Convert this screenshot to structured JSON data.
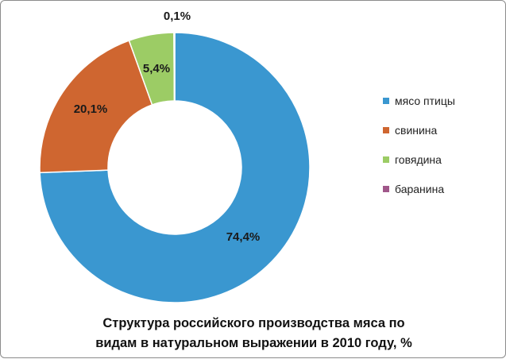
{
  "chart_data": {
    "type": "pie",
    "variant": "donut",
    "title_lines": [
      "Структура российского производства мяса по",
      "видам в натуральном выражении в 2010 году, %"
    ],
    "legend_position": "right",
    "series": [
      {
        "name": "мясо птицы",
        "value": 74.4,
        "label": "74,4%",
        "color": "#3a97d0"
      },
      {
        "name": "свинина",
        "value": 20.1,
        "label": "20,1%",
        "color": "#cf6630"
      },
      {
        "name": "говядина",
        "value": 5.4,
        "label": "5,4%",
        "color": "#9ccc65"
      },
      {
        "name": "баранина",
        "value": 0.1,
        "label": "0,1%",
        "color": "#a0578a"
      }
    ]
  }
}
